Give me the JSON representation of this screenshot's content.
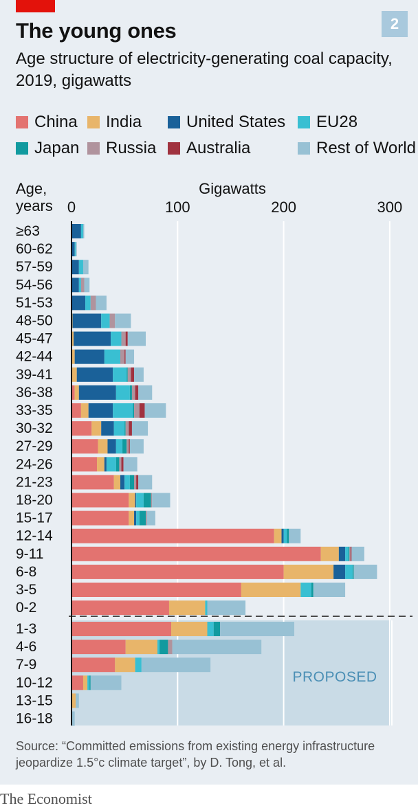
{
  "header": {
    "title": "The young ones",
    "subtitle": "Age structure of electricity-generating coal capacity, 2019, gigawatts",
    "badge": "2"
  },
  "colors": {
    "background": "#e9eef3",
    "brand_red": "#e3120b",
    "proposed_shade": "#c9dbe6",
    "China": "#e37370",
    "India": "#e8b56a",
    "United States": "#1a6199",
    "EU28": "#39bfd2",
    "Japan": "#119a9f",
    "Russia": "#b0939d",
    "Australia": "#a0323f",
    "Rest of World": "#98c1d4"
  },
  "legend": [
    {
      "name": "China",
      "color": "#e37370"
    },
    {
      "name": "India",
      "color": "#e8b56a"
    },
    {
      "name": "United States",
      "color": "#1a6199"
    },
    {
      "name": "EU28",
      "color": "#39bfd2"
    },
    {
      "name": "Japan",
      "color": "#119a9f"
    },
    {
      "name": "Russia",
      "color": "#b0939d"
    },
    {
      "name": "Australia",
      "color": "#a0323f"
    },
    {
      "name": "Rest of World",
      "color": "#98c1d4"
    }
  ],
  "chart_data": {
    "type": "bar",
    "orientation": "horizontal",
    "stacked": true,
    "title": "The young ones",
    "subtitle": "Age structure of electricity-generating coal capacity, 2019, gigawatts",
    "ylabel": "Age, years",
    "xlabel": "Gigawatts",
    "xlim": [
      0,
      300
    ],
    "xticks": [
      0,
      100,
      200,
      300
    ],
    "grid": true,
    "legend_position": "top",
    "annotation": "PROPOSED",
    "series_order": [
      "China",
      "India",
      "United States",
      "EU28",
      "Japan",
      "Russia",
      "Australia",
      "Rest of World"
    ],
    "existing": [
      {
        "age": "≥63",
        "values": {
          "China": 0,
          "India": 0,
          "United States": 9,
          "EU28": 2,
          "Japan": 0,
          "Russia": 0,
          "Australia": 0,
          "Rest of World": 1
        }
      },
      {
        "age": "60-62",
        "values": {
          "China": 0,
          "India": 0,
          "United States": 3,
          "EU28": 1,
          "Japan": 0,
          "Russia": 0,
          "Australia": 0,
          "Rest of World": 1
        }
      },
      {
        "age": "57-59",
        "values": {
          "China": 0,
          "India": 0,
          "United States": 7,
          "EU28": 4,
          "Japan": 0,
          "Russia": 0,
          "Australia": 0,
          "Rest of World": 5
        }
      },
      {
        "age": "54-56",
        "values": {
          "China": 0,
          "India": 0,
          "United States": 7,
          "EU28": 2,
          "Japan": 0,
          "Russia": 3,
          "Australia": 0,
          "Rest of World": 5
        }
      },
      {
        "age": "51-53",
        "values": {
          "China": 0,
          "India": 0,
          "United States": 13,
          "EU28": 5,
          "Japan": 0,
          "Russia": 5,
          "Australia": 0,
          "Rest of World": 10
        }
      },
      {
        "age": "48-50",
        "values": {
          "China": 0,
          "India": 1,
          "United States": 27,
          "EU28": 8,
          "Japan": 0,
          "Russia": 5,
          "Australia": 0,
          "Rest of World": 15
        }
      },
      {
        "age": "45-47",
        "values": {
          "China": 0,
          "India": 2,
          "United States": 35,
          "EU28": 10,
          "Japan": 0,
          "Russia": 4,
          "Australia": 2,
          "Rest of World": 17
        }
      },
      {
        "age": "42-44",
        "values": {
          "China": 0,
          "India": 3,
          "United States": 28,
          "EU28": 15,
          "Japan": 0,
          "Russia": 4,
          "Australia": 1,
          "Rest of World": 8
        }
      },
      {
        "age": "39-41",
        "values": {
          "China": 0,
          "India": 5,
          "United States": 34,
          "EU28": 13,
          "Japan": 1,
          "Russia": 3,
          "Australia": 3,
          "Rest of World": 9
        }
      },
      {
        "age": "36-38",
        "values": {
          "China": 3,
          "India": 4,
          "United States": 35,
          "EU28": 13,
          "Japan": 2,
          "Russia": 3,
          "Australia": 3,
          "Rest of World": 13
        }
      },
      {
        "age": "33-35",
        "values": {
          "China": 9,
          "India": 7,
          "United States": 23,
          "EU28": 19,
          "Japan": 1,
          "Russia": 5,
          "Australia": 5,
          "Rest of World": 20
        }
      },
      {
        "age": "30-32",
        "values": {
          "China": 19,
          "India": 9,
          "United States": 12,
          "EU28": 10,
          "Japan": 1,
          "Russia": 3,
          "Australia": 3,
          "Rest of World": 15
        }
      },
      {
        "age": "27-29",
        "values": {
          "China": 25,
          "India": 9,
          "United States": 8,
          "EU28": 6,
          "Japan": 4,
          "Russia": 2,
          "Australia": 1,
          "Rest of World": 13
        }
      },
      {
        "age": "24-26",
        "values": {
          "China": 24,
          "India": 7,
          "United States": 2,
          "EU28": 9,
          "Japan": 3,
          "Russia": 2,
          "Australia": 2,
          "Rest of World": 13
        }
      },
      {
        "age": "21-23",
        "values": {
          "China": 40,
          "India": 6,
          "United States": 4,
          "EU28": 5,
          "Japan": 4,
          "Russia": 2,
          "Australia": 2,
          "Rest of World": 13
        }
      },
      {
        "age": "18-20",
        "values": {
          "China": 54,
          "India": 6,
          "United States": 1,
          "EU28": 7,
          "Japan": 7,
          "Russia": 1,
          "Australia": 0,
          "Rest of World": 17
        }
      },
      {
        "age": "15-17",
        "values": {
          "China": 54,
          "India": 5,
          "United States": 2,
          "EU28": 3,
          "Japan": 6,
          "Russia": 1,
          "Australia": 0,
          "Rest of World": 8
        }
      },
      {
        "age": "12-14",
        "values": {
          "China": 191,
          "India": 7,
          "United States": 2,
          "EU28": 3,
          "Japan": 2,
          "Russia": 0,
          "Australia": 0,
          "Rest of World": 11
        }
      },
      {
        "age": "9-11",
        "values": {
          "China": 235,
          "India": 17,
          "United States": 6,
          "EU28": 3,
          "Japan": 1,
          "Russia": 1,
          "Australia": 1,
          "Rest of World": 12
        }
      },
      {
        "age": "6-8",
        "values": {
          "China": 200,
          "India": 47,
          "United States": 11,
          "EU28": 7,
          "Japan": 1,
          "Russia": 0,
          "Australia": 0,
          "Rest of World": 22
        }
      },
      {
        "age": "3-5",
        "values": {
          "China": 160,
          "India": 56,
          "United States": 0,
          "EU28": 10,
          "Japan": 2,
          "Russia": 0,
          "Australia": 0,
          "Rest of World": 30
        }
      },
      {
        "age": "0-2",
        "values": {
          "China": 92,
          "India": 34,
          "United States": 0,
          "EU28": 2,
          "Japan": 0,
          "Russia": 0,
          "Australia": 0,
          "Rest of World": 36
        }
      }
    ],
    "proposed": [
      {
        "age": "1-3",
        "values": {
          "China": 94,
          "India": 34,
          "United States": 0,
          "EU28": 6,
          "Japan": 6,
          "Russia": 0,
          "Australia": 0,
          "Rest of World": 70
        }
      },
      {
        "age": "4-6",
        "values": {
          "China": 51,
          "India": 30,
          "United States": 0,
          "EU28": 2,
          "Japan": 8,
          "Russia": 4,
          "Australia": 0,
          "Rest of World": 84
        }
      },
      {
        "age": "7-9",
        "values": {
          "China": 41,
          "India": 19,
          "United States": 0,
          "EU28": 6,
          "Japan": 0,
          "Russia": 0,
          "Australia": 0,
          "Rest of World": 65
        }
      },
      {
        "age": "10-12",
        "values": {
          "China": 11,
          "India": 4,
          "United States": 0,
          "EU28": 2,
          "Japan": 1,
          "Russia": 0,
          "Australia": 0,
          "Rest of World": 29
        }
      },
      {
        "age": "13-15",
        "values": {
          "China": 0,
          "India": 4,
          "United States": 0,
          "EU28": 0,
          "Japan": 0,
          "Russia": 0,
          "Australia": 0,
          "Rest of World": 3
        }
      },
      {
        "age": "16-18",
        "values": {
          "China": 0,
          "India": 0,
          "United States": 0,
          "EU28": 0,
          "Japan": 0,
          "Russia": 0,
          "Australia": 0,
          "Rest of World": 3
        }
      }
    ]
  },
  "footer": {
    "source": "Source: “Committed emissions from existing energy infrastructure jeopardize 1.5°c climate target”, by D. Tong, et al.",
    "brand": "The Economist"
  }
}
